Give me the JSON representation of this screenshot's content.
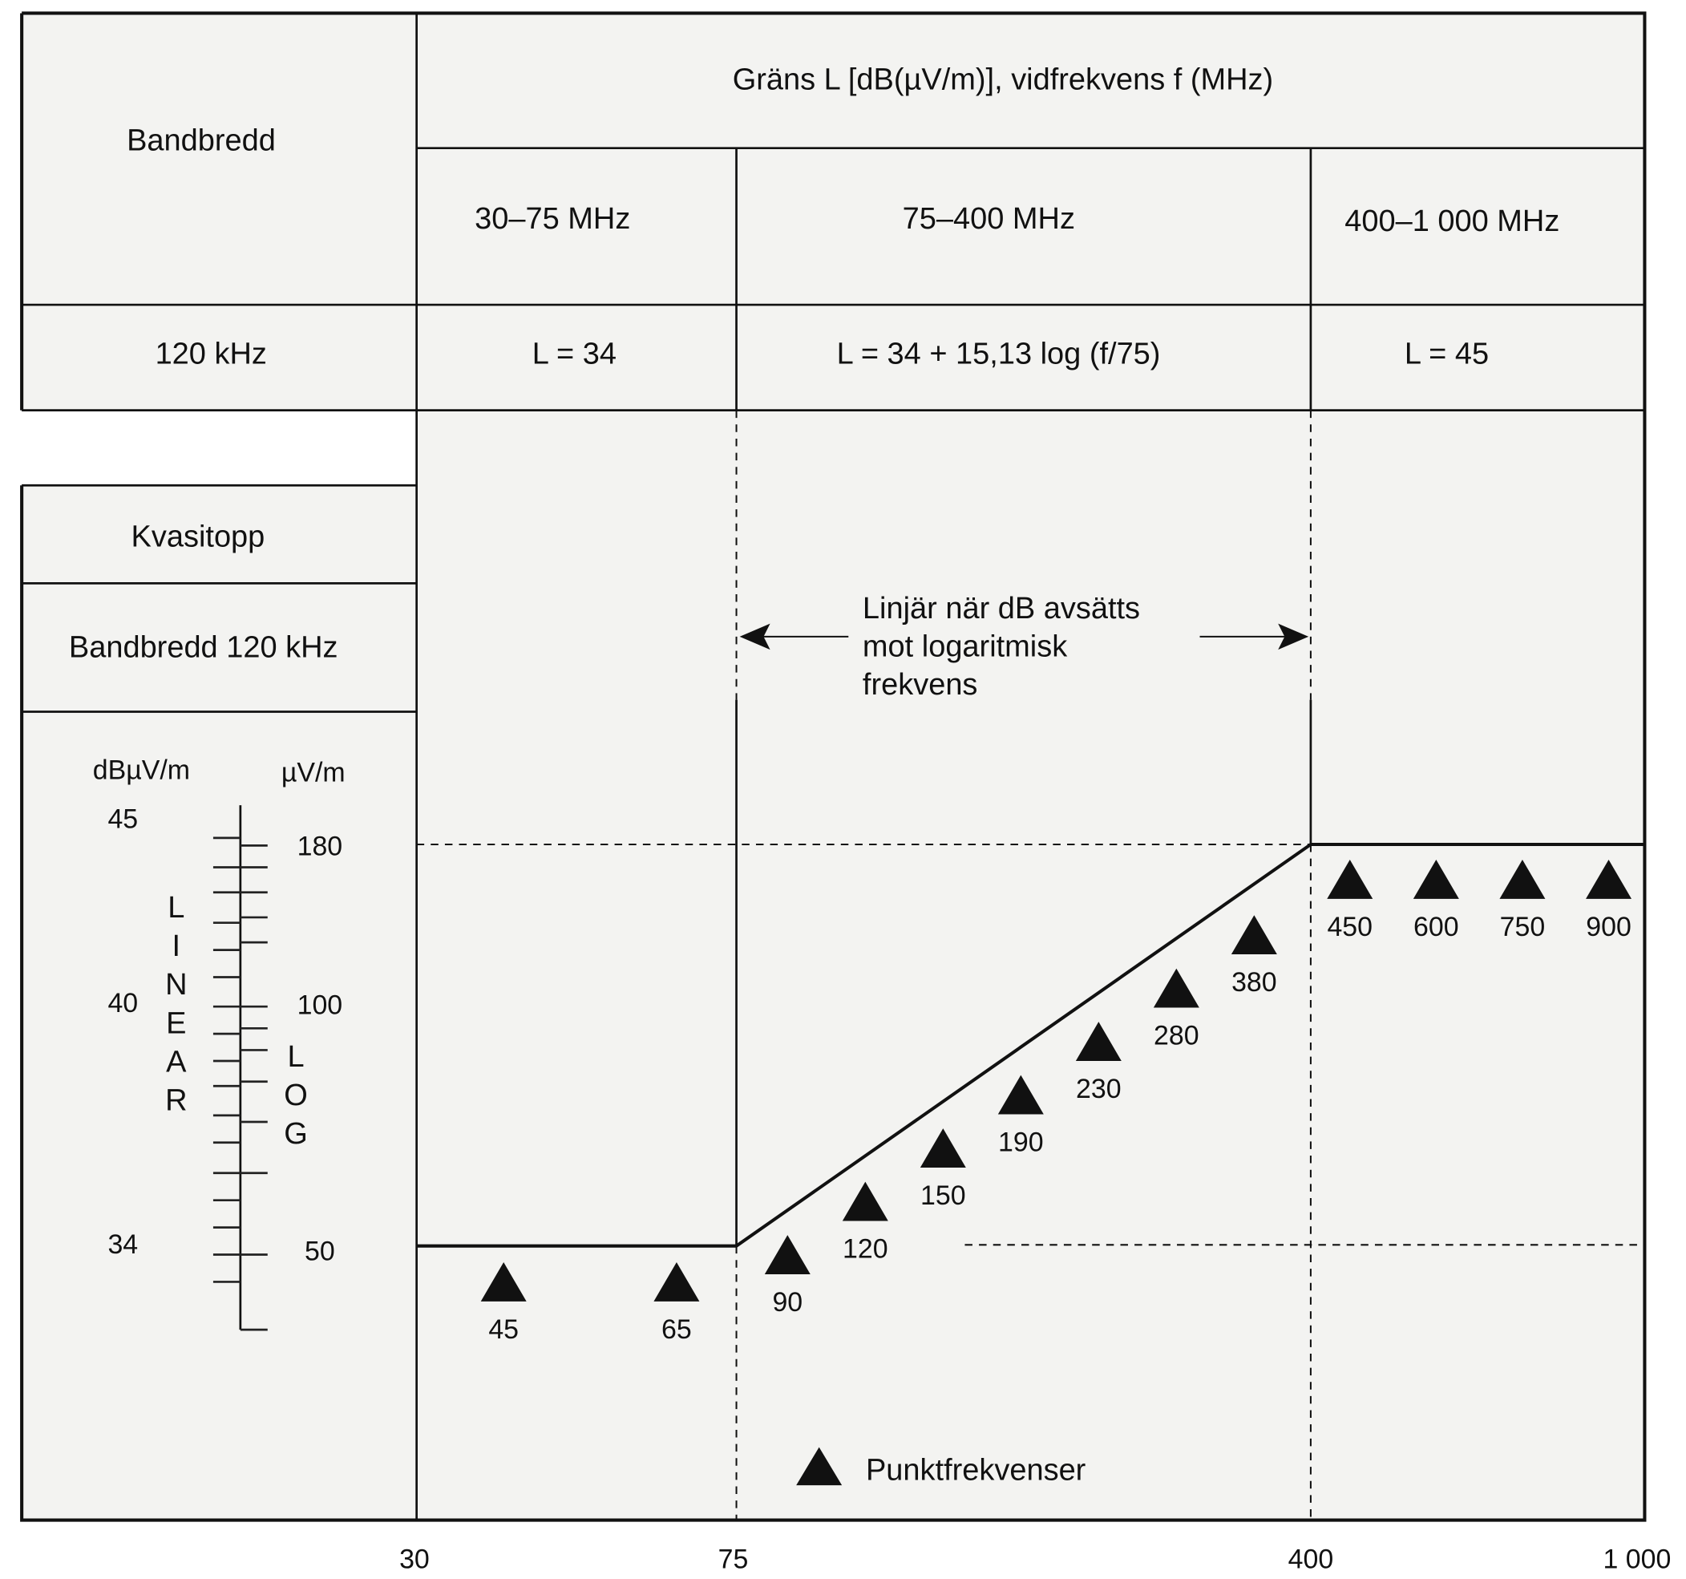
{
  "header": {
    "bandwidth_label": "Bandbredd",
    "limit_title": "Gräns L [dB(µV/m)], vidfrekvens f (MHz)",
    "ranges": [
      "30–75 MHz",
      "75–400 MHz",
      "400–1 000 MHz"
    ],
    "bandwidth_value": "120 kHz",
    "formulas": [
      "L = 34",
      "L = 34 + 15,13 log (f/75)",
      "L = 45"
    ]
  },
  "left_panel": {
    "detector": "Kvasitopp",
    "bandwidth": "Bandbredd 120 kHz",
    "unit_db": "dBµV/m",
    "unit_uv": "µV/m",
    "db_ticks": [
      "45",
      "40",
      "34"
    ],
    "uv_ticks": [
      "180",
      "100",
      "50"
    ],
    "linear_letters": [
      "L",
      "I",
      "N",
      "E",
      "A",
      "R"
    ],
    "log_letters": [
      "L",
      "O",
      "G"
    ]
  },
  "annotation": {
    "lines": [
      "Linjär när dB avsätts",
      "mot logaritmisk",
      "frekvens"
    ]
  },
  "legend": {
    "label": "Punktfrekvenser"
  },
  "chart_data": {
    "type": "line",
    "title": "Gräns L [dB(µV/m)], vidfrekvens f (MHz)",
    "xscale": "log",
    "x_ticks": [
      "30",
      "75",
      "400",
      "1 000"
    ],
    "xlim": [
      30,
      1000
    ],
    "ylim": [
      34,
      45
    ],
    "limit_line": {
      "x": [
        30,
        75,
        400,
        1000
      ],
      "y": [
        34,
        34,
        45,
        45
      ]
    },
    "point_frequencies": {
      "segment_1": [
        "45",
        "65"
      ],
      "segment_2": [
        "90",
        "120",
        "150",
        "190",
        "230",
        "280",
        "380"
      ],
      "segment_3": [
        "450",
        "600",
        "750",
        "900"
      ]
    }
  }
}
